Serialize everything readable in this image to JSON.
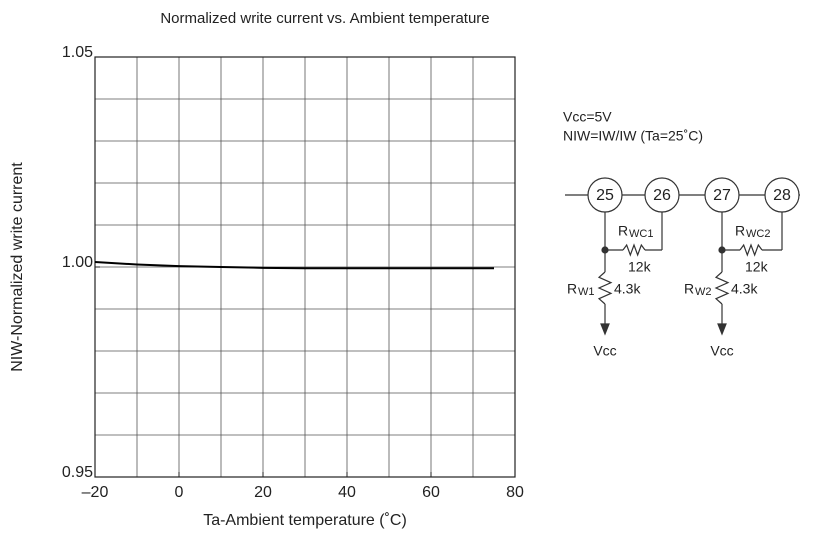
{
  "chart_data": {
    "type": "line",
    "title": "Normalized write current vs. Ambient temperature",
    "xlabel": "Ta-Ambient temperature (˚C)",
    "ylabel": "NIW-Normalized write current",
    "x": [
      -20,
      -10,
      0,
      10,
      20,
      30,
      40,
      50,
      60,
      75
    ],
    "series": [
      {
        "color": "#000000",
        "values": [
          1.0012,
          1.0006,
          1.0002,
          1.0,
          0.9998,
          0.9997,
          0.9997,
          0.9997,
          0.9997,
          0.9997
        ]
      }
    ],
    "xlim": [
      -20,
      80
    ],
    "ylim": [
      0.95,
      1.05
    ],
    "xticks": [
      {
        "value": -20,
        "label": "–20"
      },
      0,
      20,
      40,
      60,
      80
    ],
    "yticks": [
      0.95,
      {
        "value": 1,
        "label": "1.00"
      },
      1.05
    ],
    "x_grid": [
      -20,
      -10,
      0,
      10,
      20,
      30,
      40,
      50,
      60,
      70,
      80
    ],
    "y_grid": [
      0.95,
      0.96,
      0.97,
      0.98,
      0.99,
      1.0,
      1.01,
      1.02,
      1.03,
      1.04,
      1.05
    ],
    "grid": true,
    "annotations": [
      "Vcc=5V",
      "NIW=IW/IW (Ta=25˚C)"
    ]
  },
  "circuit": {
    "pins": [
      "25",
      "26",
      "27",
      "28"
    ],
    "groups": [
      {
        "rwc": {
          "name": "R",
          "sub": "WC1",
          "value": "12k"
        },
        "rw": {
          "name": "R",
          "sub": "W1",
          "value": "4.3k"
        },
        "supply": "Vcc"
      },
      {
        "rwc": {
          "name": "R",
          "sub": "WC2",
          "value": "12k"
        },
        "rw": {
          "name": "R",
          "sub": "W2",
          "value": "4.3k"
        },
        "supply": "Vcc"
      }
    ]
  }
}
